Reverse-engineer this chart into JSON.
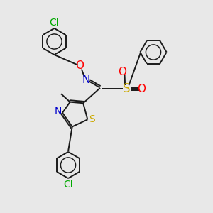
{
  "bg_color": "#e8e8e8",
  "bond_color": "#1a1a1a",
  "bond_width": 1.4,
  "atom_colors": {
    "N": "#0000cc",
    "O": "#ff0000",
    "S_yellow": "#ccaa00",
    "S_black": "#1a1a1a",
    "Cl_green": "#00aa00",
    "C": "#1a1a1a"
  },
  "font_size": 10,
  "figsize": [
    3.0,
    3.0
  ],
  "dpi": 100
}
